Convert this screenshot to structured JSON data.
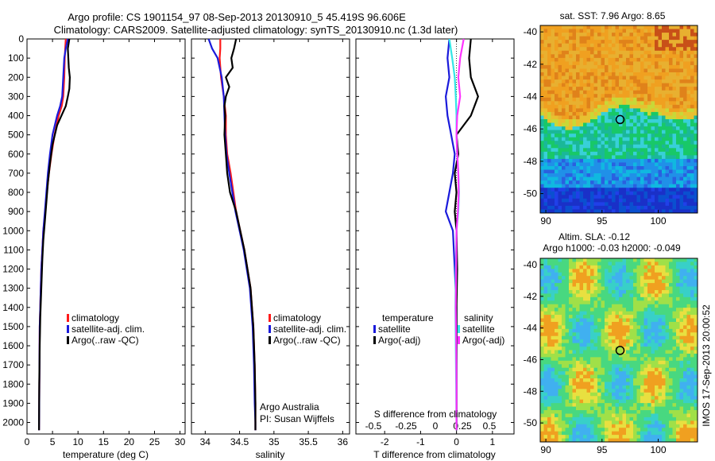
{
  "header": {
    "line1": "Argo profile: CS 1901154_97 08-Sep-2013 20130910_5 45.419S 96.606E",
    "line2": "Climatology: CARS2009. Satellite-adjusted climatology: synTS_20130910.nc (1.3d later)"
  },
  "colors": {
    "climatology": "#ff1a1a",
    "satellite_adj": "#1a1adb",
    "argo": "#000000",
    "sat_salinity": "#33e6e6",
    "argo_salinity": "#ff33ff"
  },
  "chart_data": [
    {
      "id": "temperature",
      "type": "line",
      "xlabel": "temperature (deg C)",
      "xlim": [
        0,
        31
      ],
      "xticks": [
        0,
        5,
        10,
        15,
        20,
        25,
        30
      ],
      "ylim": [
        2060,
        0
      ],
      "yticks": [
        0,
        100,
        200,
        300,
        400,
        500,
        600,
        700,
        800,
        900,
        1000,
        1100,
        1200,
        1300,
        1400,
        1500,
        1600,
        1700,
        1800,
        1900,
        2000
      ],
      "legend": [
        "climatology",
        "satellite-adj. clim.",
        "Argo(..raw -QC)"
      ],
      "legend_position": "lower-center",
      "series": [
        {
          "name": "climatology",
          "color": "#ff1a1a",
          "x": [
            7.6,
            7.5,
            7.4,
            7.3,
            7.1,
            6.8,
            6.2,
            5.4,
            4.8,
            4.3,
            3.9,
            3.6,
            3.2,
            3.0,
            2.8,
            2.7,
            2.6,
            2.5,
            2.45,
            2.4,
            2.35
          ],
          "y": [
            0,
            50,
            100,
            200,
            300,
            350,
            400,
            500,
            600,
            700,
            800,
            900,
            1000,
            1100,
            1200,
            1300,
            1400,
            1500,
            1700,
            1900,
            2040
          ]
        },
        {
          "name": "satellite-adj. clim.",
          "color": "#1a1adb",
          "x": [
            8.0,
            7.6,
            7.3,
            7.1,
            6.9,
            6.5,
            5.9,
            5.0,
            4.5,
            4.1,
            3.8,
            3.5,
            3.2,
            3.0,
            2.8,
            2.7,
            2.6,
            2.5,
            2.45,
            2.4,
            2.35
          ],
          "y": [
            0,
            50,
            100,
            200,
            300,
            350,
            400,
            500,
            600,
            700,
            800,
            900,
            1000,
            1100,
            1200,
            1300,
            1400,
            1500,
            1700,
            1900,
            2040
          ]
        },
        {
          "name": "Argo(..raw -QC)",
          "color": "#000000",
          "x": [
            8.3,
            8.0,
            8.1,
            8.2,
            8.4,
            8.3,
            8.0,
            7.6,
            5.9,
            5.0,
            4.5,
            4.1,
            3.8,
            3.5,
            3.2,
            3.0,
            2.8,
            2.6,
            2.5,
            2.4,
            2.35
          ],
          "y": [
            0,
            50,
            100,
            150,
            200,
            260,
            300,
            350,
            450,
            550,
            650,
            750,
            850,
            950,
            1050,
            1150,
            1300,
            1450,
            1600,
            1800,
            2040
          ]
        }
      ],
      "annotations": []
    },
    {
      "id": "salinity",
      "type": "line",
      "xlabel": "salinity",
      "xlim": [
        33.8,
        36.1
      ],
      "xticks": [
        34,
        34.5,
        35,
        35.5,
        36
      ],
      "ylim": [
        2060,
        0
      ],
      "legend": [
        "climatology",
        "satellite-adj. clim.",
        "Argo(..raw -QC)"
      ],
      "legend_position": "lower-center",
      "annotations": [
        "Argo Australia",
        "PI: Susan Wijffels"
      ],
      "series": [
        {
          "name": "climatology",
          "color": "#ff1a1a",
          "x": [
            34.22,
            34.22,
            34.21,
            34.23,
            34.27,
            34.3,
            34.3,
            34.32,
            34.37,
            34.45,
            34.57,
            34.66,
            34.7,
            34.72,
            34.73,
            34.73,
            34.73
          ],
          "y": [
            0,
            50,
            100,
            200,
            300,
            400,
            500,
            600,
            700,
            900,
            1100,
            1300,
            1500,
            1700,
            1900,
            2000,
            2040
          ]
        },
        {
          "name": "satellite-adj. clim.",
          "color": "#1a1adb",
          "x": [
            34.05,
            34.1,
            34.18,
            34.24,
            34.27,
            34.28,
            34.29,
            34.31,
            34.35,
            34.44,
            34.56,
            34.65,
            34.69,
            34.71,
            34.72,
            34.73,
            34.73
          ],
          "y": [
            0,
            50,
            100,
            200,
            300,
            400,
            500,
            600,
            700,
            900,
            1100,
            1300,
            1500,
            1700,
            1900,
            2000,
            2040
          ]
        },
        {
          "name": "Argo(..raw -QC)",
          "color": "#000000",
          "x": [
            34.45,
            34.42,
            34.38,
            34.4,
            34.3,
            34.35,
            34.3,
            34.28,
            34.29,
            34.28,
            34.3,
            34.32,
            34.36,
            34.45,
            34.57,
            34.66,
            34.7,
            34.72,
            34.73,
            34.73
          ],
          "y": [
            0,
            50,
            100,
            150,
            200,
            250,
            300,
            350,
            400,
            500,
            600,
            700,
            800,
            900,
            1100,
            1300,
            1500,
            1700,
            1900,
            2040
          ]
        }
      ]
    },
    {
      "id": "differences",
      "type": "line",
      "xlabel": "T difference from climatology",
      "xlabel_top": "S difference from climatology",
      "xlim": [
        -2.8,
        1.6
      ],
      "xticks": [
        -2,
        -1,
        0,
        1
      ],
      "xticks_top": [
        "-0.5",
        "-0.25",
        "0",
        "0.25",
        "0.5"
      ],
      "ylim": [
        2060,
        0
      ],
      "legend_groups": [
        {
          "title": "temperature",
          "items": [
            "satellite",
            "Argo(-adj)"
          ]
        },
        {
          "title": "salinity",
          "items": [
            "satellite",
            "Argo(-adj)"
          ]
        }
      ],
      "legend_position": "lower-center",
      "series": [
        {
          "name": "temperature satellite",
          "color": "#1a1adb",
          "x": [
            -0.2,
            -0.25,
            -0.2,
            -0.3,
            -0.25,
            -0.15,
            -0.05,
            -0.1,
            -0.2,
            -0.3,
            -0.1,
            -0.05,
            0.0,
            0.0,
            0.0,
            0.0,
            0.0
          ],
          "y": [
            0,
            100,
            200,
            300,
            400,
            500,
            600,
            700,
            800,
            900,
            1000,
            1200,
            1400,
            1600,
            1800,
            2000,
            2040
          ]
        },
        {
          "name": "temperature Argo(-adj)",
          "color": "#000000",
          "x": [
            0.4,
            0.35,
            0.4,
            0.6,
            0.4,
            0.0,
            0.05,
            -0.05,
            0.0,
            -0.05,
            0.0,
            0.02,
            0.0,
            0.0,
            0.0,
            0.0
          ],
          "y": [
            0,
            100,
            200,
            300,
            400,
            500,
            600,
            700,
            800,
            900,
            1000,
            1200,
            1400,
            1600,
            1800,
            2040
          ]
        },
        {
          "name": "salinity satellite",
          "color": "#33e6e6",
          "x": [
            -0.2,
            -0.12,
            -0.05,
            -0.02,
            0.0,
            0.0,
            0.02,
            0.05,
            0.07,
            0.05,
            0.0,
            -0.02,
            -0.03,
            -0.02,
            -0.01,
            0.0
          ],
          "y": [
            0,
            100,
            200,
            300,
            400,
            500,
            600,
            700,
            800,
            900,
            1000,
            1200,
            1400,
            1600,
            1800,
            2040
          ]
        },
        {
          "name": "salinity Argo(-adj)",
          "color": "#ff33ff",
          "x": [
            0.2,
            0.1,
            0.05,
            0.1,
            0.02,
            0.0,
            0.02,
            0.05,
            0.06,
            0.04,
            0.0,
            -0.01,
            -0.02,
            -0.01,
            0.0,
            0.0
          ],
          "y": [
            0,
            100,
            200,
            300,
            400,
            500,
            600,
            700,
            800,
            900,
            1000,
            1200,
            1400,
            1600,
            1800,
            2040
          ]
        }
      ]
    },
    {
      "id": "sst_map",
      "type": "heatmap",
      "title": "sat. SST: 7.96  Argo: 8.65",
      "xlim": [
        89.5,
        103.5
      ],
      "ylim": [
        -51.2,
        -39.6
      ],
      "xticks": [
        90,
        95,
        100
      ],
      "yticks": [
        -40,
        -42,
        -44,
        -46,
        -48,
        -50
      ],
      "marker": {
        "lon": 96.606,
        "lat": -45.419
      }
    },
    {
      "id": "sla_map",
      "type": "heatmap",
      "title": "Altim. SLA: -0.12",
      "subtitle": "Argo h1000: -0.03  h2000: -0.049",
      "xlim": [
        89.5,
        103.5
      ],
      "ylim": [
        -51.2,
        -39.6
      ],
      "xticks": [
        90,
        95,
        100
      ],
      "yticks": [
        -40,
        -42,
        -44,
        -46,
        -48,
        -50
      ],
      "marker": {
        "lon": 96.606,
        "lat": -45.419
      }
    }
  ],
  "side_label": "IMOS 17-Sep-2013 20:00:52"
}
